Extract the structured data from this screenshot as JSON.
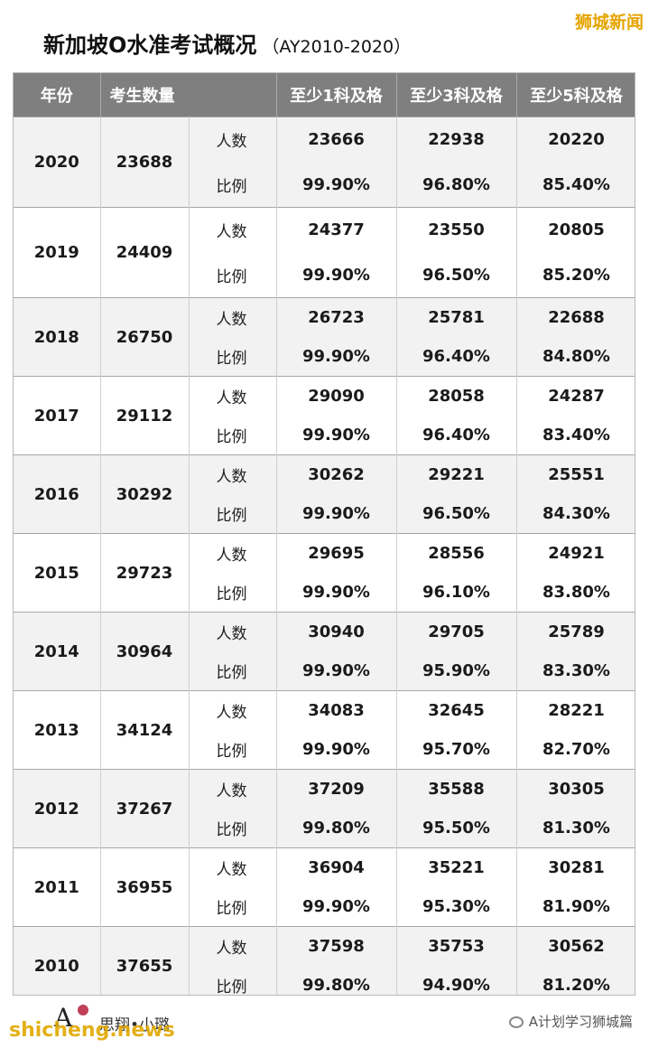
{
  "title": {
    "main": "新加坡O水准考试概况",
    "sub": "（AY2010-2020）"
  },
  "brand_tag": "狮城新闻",
  "headers": [
    "年份",
    "考生数量",
    "至少1科及格",
    "至少3科及格",
    "至少5科及格"
  ],
  "row_labels": {
    "count": "人数",
    "ratio": "比例"
  },
  "rows": [
    {
      "year": "2020",
      "total": "23688",
      "count": [
        "23666",
        "22938",
        "20220"
      ],
      "ratio": [
        "99.90%",
        "96.80%",
        "85.40%"
      ]
    },
    {
      "year": "2019",
      "total": "24409",
      "count": [
        "24377",
        "23550",
        "20805"
      ],
      "ratio": [
        "99.90%",
        "96.50%",
        "85.20%"
      ]
    },
    {
      "year": "2018",
      "total": "26750",
      "count": [
        "26723",
        "25781",
        "22688"
      ],
      "ratio": [
        "99.90%",
        "96.40%",
        "84.80%"
      ]
    },
    {
      "year": "2017",
      "total": "29112",
      "count": [
        "29090",
        "28058",
        "24287"
      ],
      "ratio": [
        "99.90%",
        "96.40%",
        "83.40%"
      ]
    },
    {
      "year": "2016",
      "total": "30292",
      "count": [
        "30262",
        "29221",
        "25551"
      ],
      "ratio": [
        "99.90%",
        "96.50%",
        "84.30%"
      ]
    },
    {
      "year": "2015",
      "total": "29723",
      "count": [
        "29695",
        "28556",
        "24921"
      ],
      "ratio": [
        "99.90%",
        "96.10%",
        "83.80%"
      ]
    },
    {
      "year": "2014",
      "total": "30964",
      "count": [
        "30940",
        "29705",
        "25789"
      ],
      "ratio": [
        "99.90%",
        "95.90%",
        "83.30%"
      ]
    },
    {
      "year": "2013",
      "total": "34124",
      "count": [
        "34083",
        "32645",
        "28221"
      ],
      "ratio": [
        "99.90%",
        "95.70%",
        "82.70%"
      ]
    },
    {
      "year": "2012",
      "total": "37267",
      "count": [
        "37209",
        "35588",
        "30305"
      ],
      "ratio": [
        "99.80%",
        "95.50%",
        "81.30%"
      ]
    },
    {
      "year": "2011",
      "total": "36955",
      "count": [
        "36904",
        "35221",
        "30281"
      ],
      "ratio": [
        "99.90%",
        "95.30%",
        "81.90%"
      ]
    },
    {
      "year": "2010",
      "total": "37655",
      "count": [
        "37598",
        "35753",
        "30562"
      ],
      "ratio": [
        "99.80%",
        "94.90%",
        "81.20%"
      ]
    }
  ],
  "footer": {
    "logo_letter": "A",
    "slogan": "思翔•小璐",
    "watermark": "shicheng.news",
    "account": "A计划学习狮城篇"
  }
}
